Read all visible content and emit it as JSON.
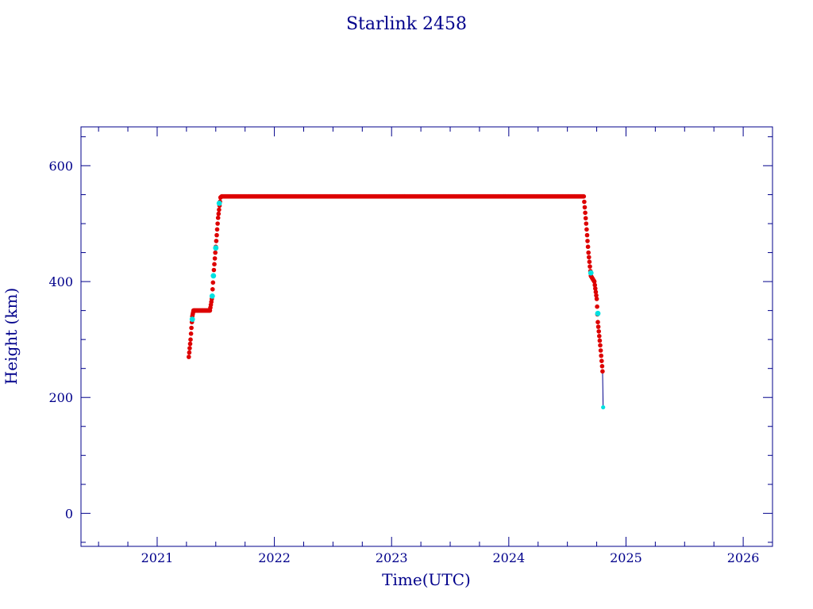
{
  "chart_data": {
    "type": "scatter",
    "title": "Starlink 2458",
    "xlabel": "Time(UTC)",
    "ylabel": "Height (km)",
    "xlim": [
      2020.35,
      2026.25
    ],
    "ylim": [
      -57,
      667
    ],
    "x_ticks": [
      2021,
      2022,
      2023,
      2024,
      2025,
      2026
    ],
    "x_tick_labels": [
      "2021",
      "2022",
      "2023",
      "2024",
      "2025",
      "2026"
    ],
    "y_ticks": [
      0,
      200,
      400,
      600
    ],
    "y_tick_labels": [
      "0",
      "200",
      "400",
      "600"
    ],
    "grid": false,
    "legend": "none",
    "colors": {
      "axis": "#00008b",
      "text": "#00008b",
      "main_series": "#dd0000",
      "highlight_series": "#00e0e0",
      "decay_line": "#00008b"
    },
    "series": [
      {
        "role": "main",
        "x": [
          2021.27,
          2021.285,
          2021.3,
          2021.31,
          2021.32,
          2021.35,
          2021.4,
          2021.45,
          2021.47,
          2021.48,
          2021.5,
          2021.52,
          2021.54,
          2021.55,
          2022.0,
          2022.5,
          2023.0,
          2023.5,
          2024.0,
          2024.5,
          2024.64,
          2024.66,
          2024.68,
          2024.7,
          2024.73,
          2024.75,
          2024.76,
          2024.78,
          2024.8
        ],
        "y": [
          270,
          300,
          340,
          350,
          350,
          350,
          350,
          350,
          375,
          410,
          460,
          510,
          545,
          547,
          547,
          547,
          547,
          547,
          547,
          547,
          547,
          500,
          450,
          410,
          400,
          370,
          330,
          290,
          245
        ]
      },
      {
        "role": "highlight",
        "x": [
          2021.3,
          2021.47,
          2021.48,
          2021.5,
          2021.53,
          2024.7,
          2024.76,
          2024.805
        ],
        "y": [
          335,
          375,
          410,
          458,
          535,
          415,
          345,
          183
        ]
      }
    ]
  }
}
